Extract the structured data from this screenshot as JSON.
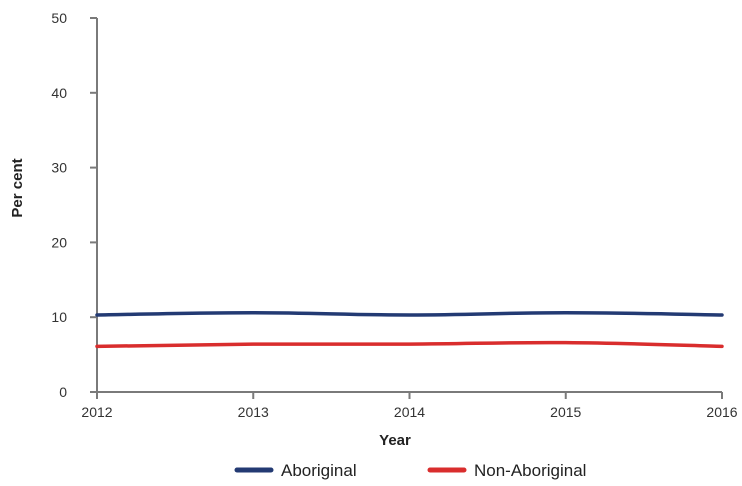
{
  "chart_data": {
    "type": "line",
    "title": "",
    "xlabel": "Year",
    "ylabel": "Per cent",
    "x": [
      2012,
      2013,
      2014,
      2015,
      2016
    ],
    "ylim": [
      0,
      50
    ],
    "yticks": [
      0,
      10,
      20,
      30,
      40,
      50
    ],
    "grid": false,
    "legend_position": "bottom",
    "series": [
      {
        "name": "Aboriginal",
        "color": "#233a73",
        "values": [
          10.3,
          10.6,
          10.3,
          10.6,
          10.3
        ]
      },
      {
        "name": "Non-Aboriginal",
        "color": "#d92d2d",
        "values": [
          6.1,
          6.4,
          6.4,
          6.6,
          6.1
        ]
      }
    ]
  }
}
